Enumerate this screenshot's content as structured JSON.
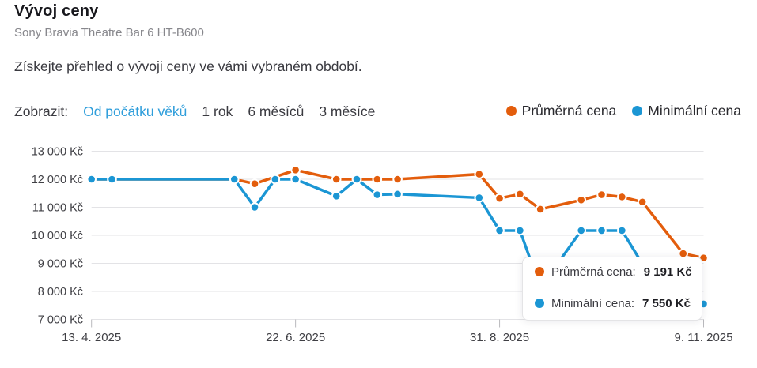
{
  "page": {
    "title": "Vývoj ceny",
    "subtitle": "Sony Bravia Theatre Bar 6 HT-B600",
    "description": "Získejte přehled o vývoji ceny ve vámi vybraném období."
  },
  "filters": {
    "label": "Zobrazit:",
    "options": [
      {
        "label": "Od počátku věků",
        "active": true
      },
      {
        "label": "1 rok",
        "active": false
      },
      {
        "label": "6 měsíců",
        "active": false
      },
      {
        "label": "3 měsíce",
        "active": false
      }
    ]
  },
  "colors": {
    "average": "#e35d0c",
    "minimum": "#1b96d4",
    "grid": "#e3e3e6",
    "axis_text": "#3f3f44",
    "active_link": "#2f9edb"
  },
  "legend": [
    {
      "label": "Průměrná cena",
      "series": "average"
    },
    {
      "label": "Minimální cena",
      "series": "minimum"
    }
  ],
  "tooltip": {
    "rows": [
      {
        "label": "Průměrná cena:",
        "value": "9 191 Kč",
        "series": "average"
      },
      {
        "label": "Minimální cena:",
        "value": "7 550 Kč",
        "series": "minimum"
      }
    ]
  },
  "chart_data": {
    "type": "line",
    "x_unit": "days since 13. 4. 2025",
    "x_range": [
      0,
      210
    ],
    "ylim": [
      7000,
      13000
    ],
    "grid": true,
    "legend_position": "top-right",
    "y_ticks": [
      {
        "value": 13000,
        "label": "13 000 Kč"
      },
      {
        "value": 12000,
        "label": "12 000 Kč"
      },
      {
        "value": 11000,
        "label": "11 000 Kč"
      },
      {
        "value": 10000,
        "label": "10 000 Kč"
      },
      {
        "value": 9000,
        "label": "9 000 Kč"
      },
      {
        "value": 8000,
        "label": "8 000 Kč"
      },
      {
        "value": 7000,
        "label": "7 000 Kč"
      }
    ],
    "x_ticks": [
      {
        "x": 0,
        "label": "13. 4. 2025"
      },
      {
        "x": 70,
        "label": "22. 6. 2025"
      },
      {
        "x": 140,
        "label": "31. 8. 2025"
      },
      {
        "x": 210,
        "label": "9. 11. 2025"
      }
    ],
    "series": [
      {
        "name": "Průměrná cena",
        "series": "average",
        "points": [
          [
            0,
            12000
          ],
          [
            7,
            12000
          ],
          [
            49,
            12000
          ],
          [
            56,
            11840
          ],
          [
            70,
            12330
          ],
          [
            84,
            12000
          ],
          [
            91,
            12000
          ],
          [
            98,
            12000
          ],
          [
            105,
            12000
          ],
          [
            133,
            12180
          ],
          [
            140,
            11320
          ],
          [
            147,
            11470
          ],
          [
            154,
            10930
          ],
          [
            168,
            11260
          ],
          [
            175,
            11450
          ],
          [
            182,
            11370
          ],
          [
            189,
            11190
          ],
          [
            203,
            9350
          ],
          [
            210,
            9191
          ]
        ]
      },
      {
        "name": "Minimální cena",
        "series": "minimum",
        "points": [
          [
            0,
            12000
          ],
          [
            7,
            12000
          ],
          [
            49,
            12000
          ],
          [
            56,
            11000
          ],
          [
            63,
            12000
          ],
          [
            70,
            12000
          ],
          [
            84,
            11400
          ],
          [
            91,
            12000
          ],
          [
            98,
            11450
          ],
          [
            105,
            11470
          ],
          [
            133,
            11340
          ],
          [
            140,
            10170
          ],
          [
            147,
            10170
          ],
          [
            154,
            8130
          ],
          [
            168,
            10170
          ],
          [
            175,
            10170
          ],
          [
            182,
            10170
          ],
          [
            189,
            8980
          ],
          [
            203,
            7550
          ],
          [
            210,
            7550
          ]
        ]
      }
    ]
  }
}
